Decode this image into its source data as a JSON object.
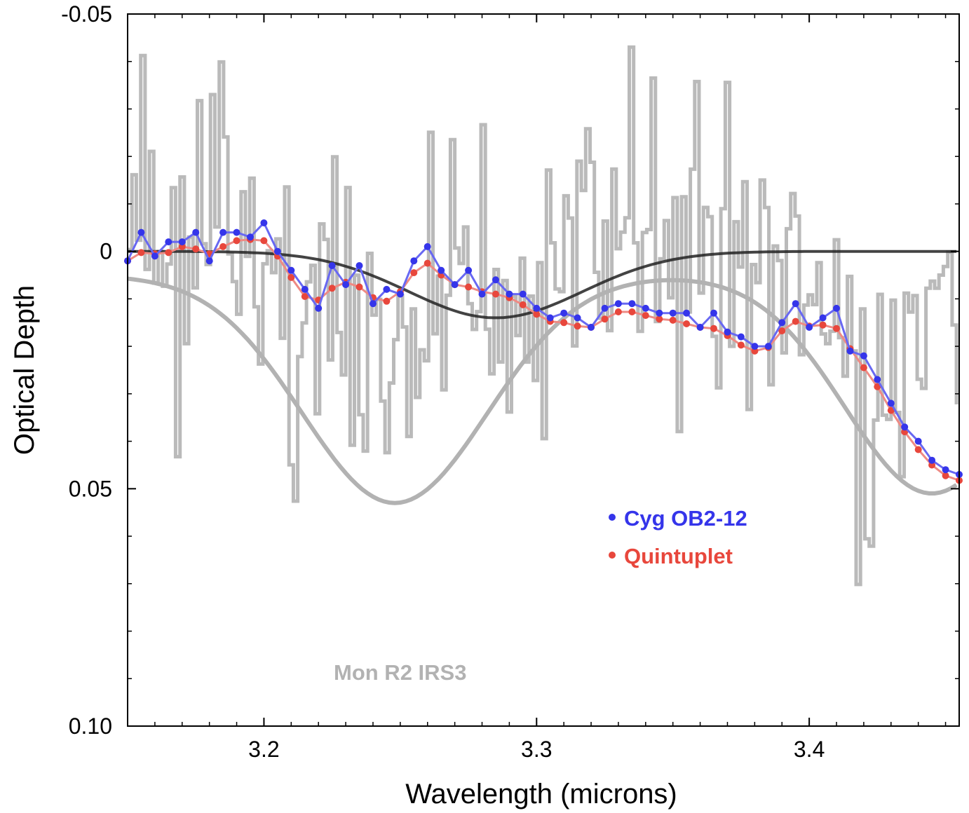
{
  "chart_data": {
    "type": "line",
    "xlabel": "Wavelength (microns)",
    "ylabel": "Optical Depth",
    "xlim": [
      3.15,
      3.455
    ],
    "ylim": [
      -0.05,
      0.1
    ],
    "y_inverted": true,
    "grid": false,
    "legend_placement": "lower-right",
    "x_ticks": [
      3.2,
      3.3,
      3.4
    ],
    "x_tick_labels": [
      "3.2",
      "3.3",
      "3.4"
    ],
    "y_ticks": [
      -0.05,
      0,
      0.05,
      0.1
    ],
    "y_tick_labels": [
      "-0.05",
      "0",
      "0.05",
      "0.10"
    ],
    "colors": {
      "cyg": "#3535ea",
      "cyg_line": "#6868f2",
      "quint": "#e8473c",
      "quint_line": "#ee8a84",
      "gray": "#b2b2b2",
      "model": "#222222"
    },
    "annotation": "Mon R2 IRS3",
    "series": [
      {
        "name": "Cyg OB2-12",
        "color": "#3535ea",
        "x": [
          3.15,
          3.155,
          3.16,
          3.165,
          3.17,
          3.175,
          3.18,
          3.185,
          3.19,
          3.195,
          3.2,
          3.205,
          3.21,
          3.215,
          3.22,
          3.225,
          3.23,
          3.235,
          3.24,
          3.245,
          3.25,
          3.255,
          3.26,
          3.265,
          3.27,
          3.275,
          3.28,
          3.285,
          3.29,
          3.295,
          3.3,
          3.305,
          3.31,
          3.315,
          3.32,
          3.325,
          3.33,
          3.335,
          3.34,
          3.345,
          3.35,
          3.355,
          3.36,
          3.365,
          3.37,
          3.375,
          3.38,
          3.385,
          3.39,
          3.395,
          3.4,
          3.405,
          3.41,
          3.415,
          3.42,
          3.425,
          3.43,
          3.435,
          3.44,
          3.445,
          3.45,
          3.455
        ],
        "y": [
          0.002,
          -0.004,
          0.001,
          -0.002,
          -0.002,
          -0.004,
          0.002,
          -0.004,
          -0.004,
          -0.003,
          -0.006,
          0.0,
          0.004,
          0.008,
          0.012,
          0.003,
          0.007,
          0.003,
          0.011,
          0.008,
          0.009,
          0.002,
          -0.001,
          0.004,
          0.007,
          0.004,
          0.009,
          0.006,
          0.009,
          0.009,
          0.012,
          0.014,
          0.013,
          0.014,
          0.016,
          0.012,
          0.011,
          0.011,
          0.012,
          0.013,
          0.013,
          0.013,
          0.016,
          0.013,
          0.017,
          0.018,
          0.02,
          0.02,
          0.015,
          0.011,
          0.016,
          0.014,
          0.012,
          0.021,
          0.022,
          0.027,
          0.032,
          0.037,
          0.04,
          0.044,
          0.046,
          0.047
        ],
        "note": "values read approximately from plot"
      },
      {
        "name": "Quintuplet",
        "color": "#e8473c",
        "x": [],
        "y": []
      }
    ]
  }
}
